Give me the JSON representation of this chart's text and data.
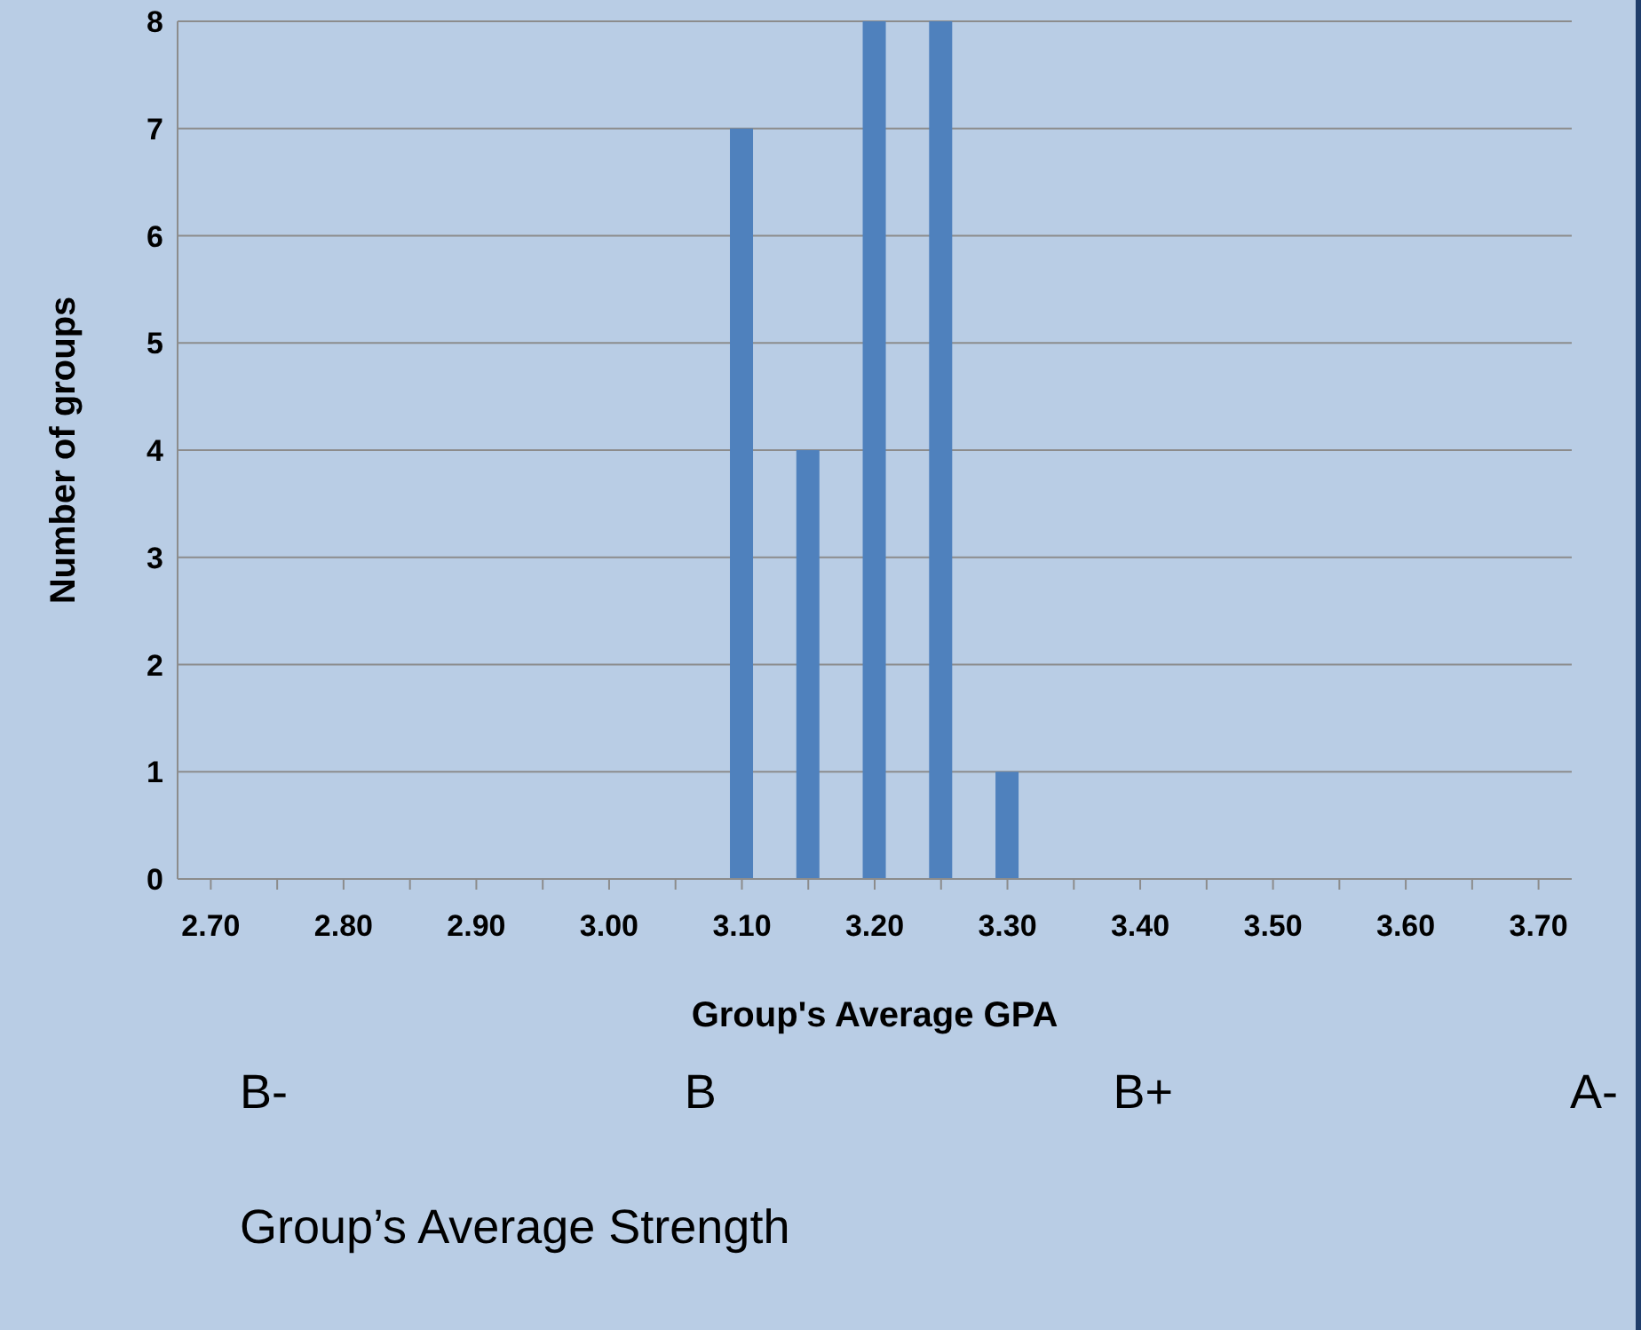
{
  "chart_data": {
    "type": "bar",
    "xlabel": "Group's Average GPA",
    "ylabel": "Number of groups",
    "categories": [
      "2.70",
      null,
      "2.80",
      null,
      "2.90",
      null,
      "3.00",
      null,
      "3.10",
      null,
      "3.20",
      null,
      "3.30",
      null,
      "3.40",
      null,
      "3.50",
      null,
      "3.60",
      null,
      "3.70"
    ],
    "values": [
      0,
      0,
      0,
      0,
      0,
      0,
      0,
      0,
      7,
      4,
      8,
      8,
      1,
      0,
      0,
      0,
      0,
      0,
      0,
      0,
      0
    ],
    "color": "#4f81bd",
    "ylim": [
      0,
      8
    ],
    "yticks": [
      0,
      1,
      2,
      3,
      4,
      5,
      6,
      7,
      8
    ],
    "grid": "y",
    "annotations": [
      "B-",
      "B",
      "B+",
      "A-",
      "Group’s Average Strength"
    ]
  }
}
